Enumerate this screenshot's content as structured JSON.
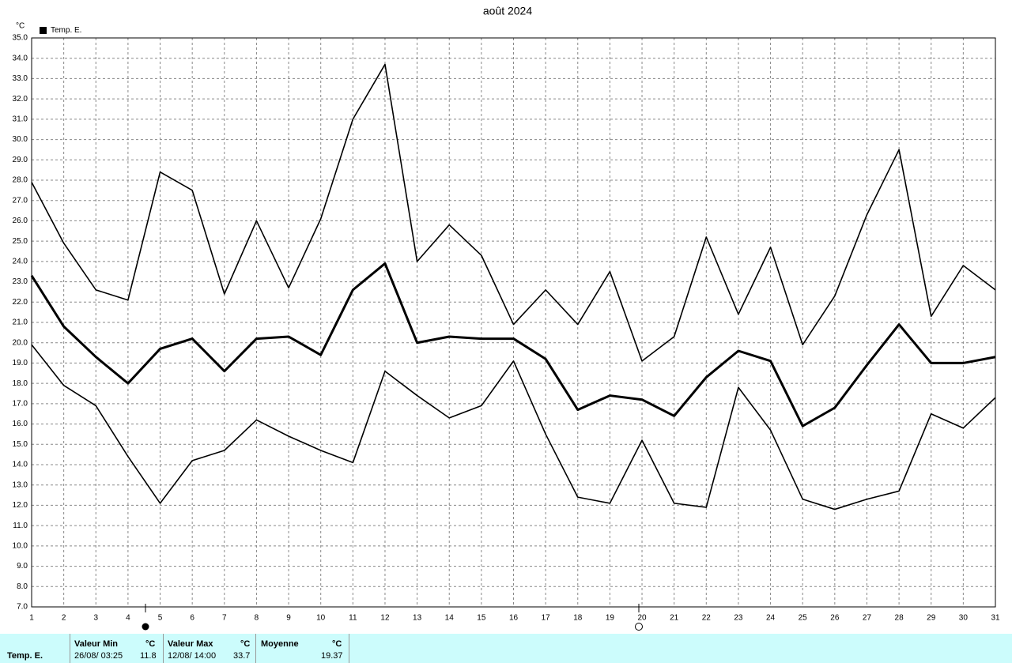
{
  "chart_data": {
    "type": "line",
    "title": "août 2024",
    "y_unit": "°C",
    "legend": "Temp. E.",
    "legend_color": "#000000",
    "x": [
      1,
      2,
      3,
      4,
      5,
      6,
      7,
      8,
      9,
      10,
      11,
      12,
      13,
      14,
      15,
      16,
      17,
      18,
      19,
      20,
      21,
      22,
      23,
      24,
      25,
      26,
      27,
      28,
      29,
      30,
      31
    ],
    "xlim": [
      1,
      31
    ],
    "xticks": [
      1,
      2,
      3,
      4,
      5,
      6,
      7,
      8,
      9,
      10,
      11,
      12,
      13,
      14,
      15,
      16,
      17,
      18,
      19,
      20,
      21,
      22,
      23,
      24,
      25,
      26,
      27,
      28,
      29,
      30,
      31
    ],
    "ylim": [
      7,
      35
    ],
    "yticks": [
      {
        "value": 7,
        "label": "7.0"
      },
      {
        "value": 8,
        "label": "8.0"
      },
      {
        "value": 9,
        "label": "9.0"
      },
      {
        "value": 10,
        "label": "10.0"
      },
      {
        "value": 11,
        "label": "11.0"
      },
      {
        "value": 12,
        "label": "12.0"
      },
      {
        "value": 13,
        "label": "13.0"
      },
      {
        "value": 14,
        "label": "14.0"
      },
      {
        "value": 15,
        "label": "15.0"
      },
      {
        "value": 16,
        "label": "16.0"
      },
      {
        "value": 17,
        "label": "17.0"
      },
      {
        "value": 18,
        "label": "18.0"
      },
      {
        "value": 19,
        "label": "19.0"
      },
      {
        "value": 20,
        "label": "20.0"
      },
      {
        "value": 21,
        "label": "21.0"
      },
      {
        "value": 22,
        "label": "22.0"
      },
      {
        "value": 23,
        "label": "23.0"
      },
      {
        "value": 24,
        "label": "24.0"
      },
      {
        "value": 25,
        "label": "25.0"
      },
      {
        "value": 26,
        "label": "26.0"
      },
      {
        "value": 27,
        "label": "27.0"
      },
      {
        "value": 28,
        "label": "28.0"
      },
      {
        "value": 29,
        "label": "29.0"
      },
      {
        "value": 30,
        "label": "30.0"
      },
      {
        "value": 31,
        "label": "31.0"
      },
      {
        "value": 32,
        "label": "32.0"
      },
      {
        "value": 33,
        "label": "33.0"
      },
      {
        "value": 34,
        "label": "34.0"
      },
      {
        "value": 35,
        "label": "35.0"
      }
    ],
    "grid": true,
    "series": [
      {
        "color": "#000000",
        "values": [
          27.9,
          24.9,
          22.6,
          22.1,
          28.4,
          27.5,
          22.4,
          26.0,
          22.7,
          26.1,
          31.0,
          33.7,
          24.0,
          25.8,
          24.3,
          20.9,
          22.6,
          20.9,
          23.5,
          19.1,
          20.3,
          25.2,
          21.4,
          24.7,
          19.9,
          22.3,
          26.3,
          29.5,
          21.3,
          23.8,
          22.6
        ]
      },
      {
        "color": "#000000",
        "values": [
          23.3,
          20.8,
          19.3,
          18.0,
          19.7,
          20.2,
          18.6,
          20.2,
          20.3,
          19.4,
          22.6,
          23.9,
          20.0,
          20.3,
          20.2,
          20.2,
          19.2,
          16.7,
          17.4,
          17.2,
          16.4,
          18.3,
          19.6,
          19.1,
          15.9,
          16.8,
          18.9,
          20.9,
          19.0,
          19.0,
          19.3
        ]
      },
      {
        "color": "#000000",
        "values": [
          19.9,
          17.9,
          16.9,
          14.4,
          12.1,
          14.2,
          14.7,
          16.2,
          15.4,
          14.7,
          14.1,
          18.6,
          17.4,
          16.3,
          16.9,
          19.1,
          15.5,
          12.4,
          12.1,
          15.2,
          12.1,
          11.9,
          17.8,
          15.7,
          12.3,
          11.8,
          12.3,
          12.7,
          16.5,
          15.8,
          17.3
        ]
      }
    ]
  },
  "summary": {
    "label": "Temp. E.",
    "min": {
      "title": "Valeur Min",
      "unit": "°C",
      "when": "26/08/ 03:25",
      "value": "11.8"
    },
    "max": {
      "title": "Valeur Max",
      "unit": "°C",
      "when": "12/08/ 14:00",
      "value": "33.7"
    },
    "mean": {
      "title": "Moyenne",
      "unit": "°C",
      "value": "19.37"
    }
  }
}
